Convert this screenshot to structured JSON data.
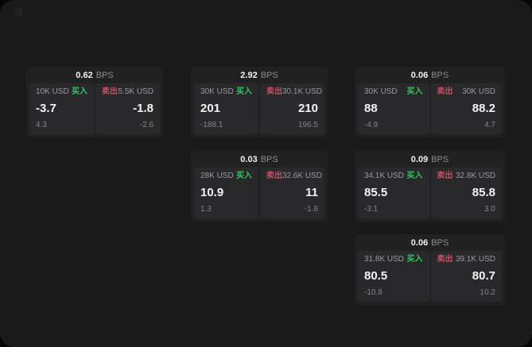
{
  "page": {
    "background": "#1a1a1b",
    "outside_background": "#060606",
    "watermark": "維"
  },
  "colors": {
    "buy_green": "#30c85e",
    "sell_red": "#c35263",
    "card_bg": "#212122",
    "cell_bg": "#29292b",
    "primary_text": "#f4f4f5",
    "secondary_text": "#9a9aa0"
  },
  "labels": {
    "buy": "买入",
    "sell": "卖出",
    "bps_unit": "BPS"
  },
  "cards": [
    {
      "bps_value": "0.62",
      "bps_unit": "BPS",
      "buy": {
        "amount": "10K USD",
        "side_label": "买入",
        "price": "-3.7",
        "delta": "4.3"
      },
      "sell": {
        "side_label": "卖出",
        "amount": "5.5K USD",
        "price": "-1.8",
        "delta": "-2.6"
      }
    },
    {
      "bps_value": "2.92",
      "bps_unit": "BPS",
      "buy": {
        "amount": "30K USD",
        "side_label": "买入",
        "price": "201",
        "delta": "-188.1"
      },
      "sell": {
        "side_label": "卖出",
        "amount": "30.1K USD",
        "price": "210",
        "delta": "196.5"
      }
    },
    {
      "bps_value": "0.06",
      "bps_unit": "BPS",
      "buy": {
        "amount": "30K USD",
        "side_label": "买入",
        "price": "88",
        "delta": "-4.9"
      },
      "sell": {
        "side_label": "卖出",
        "amount": "30K USD",
        "price": "88.2",
        "delta": "4.7"
      }
    },
    {
      "bps_value": "0.03",
      "bps_unit": "BPS",
      "buy": {
        "amount": "28K USD",
        "side_label": "买入",
        "price": "10.9",
        "delta": "1.3"
      },
      "sell": {
        "side_label": "卖出",
        "amount": "32.6K USD",
        "price": "11",
        "delta": "-1.8"
      }
    },
    {
      "bps_value": "0.09",
      "bps_unit": "BPS",
      "buy": {
        "amount": "34.1K USD",
        "side_label": "买入",
        "price": "85.5",
        "delta": "-3.1"
      },
      "sell": {
        "side_label": "卖出",
        "amount": "32.8K USD",
        "price": "85.8",
        "delta": "3.0"
      }
    },
    {
      "bps_value": "0.06",
      "bps_unit": "BPS",
      "buy": {
        "amount": "31.8K USD",
        "side_label": "买入",
        "price": "80.5",
        "delta": "-10.8"
      },
      "sell": {
        "side_label": "卖出",
        "amount": "39.1K USD",
        "price": "80.7",
        "delta": "10.2"
      }
    }
  ]
}
